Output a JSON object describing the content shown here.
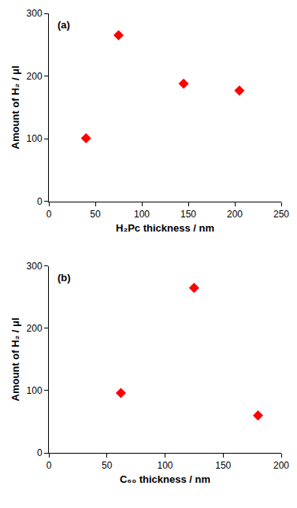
{
  "chart_data": [
    {
      "type": "scatter",
      "title": "(a)",
      "x_label": "H₂Pc thickness / nm",
      "y_label": "Amount of H₂ / μl",
      "x": [
        40,
        75,
        145,
        205
      ],
      "values": [
        101,
        265,
        188,
        177
      ],
      "color": "#ff0000",
      "marker": "diamond",
      "xlim": [
        0,
        250
      ],
      "xticks": [
        0,
        50,
        100,
        150,
        200,
        250
      ],
      "ylim": [
        0,
        300
      ],
      "yticks": [
        0,
        100,
        200,
        300
      ],
      "grid": false
    },
    {
      "type": "scatter",
      "title": "(b)",
      "x_label": "C₆₀ thickness / nm",
      "y_label": "Amount of H₂ / μl",
      "x": [
        62,
        125,
        180
      ],
      "values": [
        96,
        265,
        60
      ],
      "color": "#ff0000",
      "marker": "diamond",
      "xlim": [
        0,
        200
      ],
      "xticks": [
        0,
        50,
        100,
        150,
        200
      ],
      "ylim": [
        0,
        300
      ],
      "yticks": [
        0,
        100,
        200,
        300
      ],
      "grid": false
    }
  ]
}
